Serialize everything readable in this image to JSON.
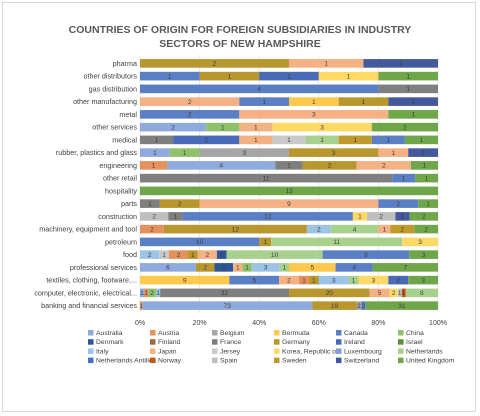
{
  "chart_data": {
    "type": "bar",
    "orientation": "horizontal",
    "stacked": "percent",
    "title_lines": [
      "COUNTRIES OF ORIGIN FOR FOREIGN SUBSIDIARIES IN INDUSTRY",
      "SECTORS OF NEW HAMPSHIRE"
    ],
    "xlim": [
      0,
      100
    ],
    "x_ticks": [
      "0%",
      "20%",
      "40%",
      "60%",
      "80%",
      "100%"
    ],
    "grid": true,
    "legend_position": "bottom",
    "countries": [
      "Australia",
      "Austria",
      "Belgium",
      "Bermuda",
      "Canada",
      "China",
      "Denmark",
      "Finland",
      "France",
      "Germany",
      "Ireland",
      "Israel",
      "Italy",
      "Japan",
      "Jersey",
      "Korea, Republic of",
      "Luxembourg",
      "Netherlands",
      "Netherlands Antilles",
      "Norway",
      "Spain",
      "Sweden",
      "Switzerland",
      "United Kingdom"
    ],
    "colors": {
      "Australia": "#8faadc",
      "Austria": "#e4915e",
      "Belgium": "#a5a5a5",
      "Bermuda": "#ffc94d",
      "Canada": "#5b7fc4",
      "China": "#8fc16a",
      "Denmark": "#2f5597",
      "Finland": "#9b6c3d",
      "France": "#7f7f7f",
      "Germany": "#b8972e",
      "Ireland": "#4a6ab5",
      "Israel": "#5c8e3f",
      "Italy": "#9dc3e6",
      "Japan": "#f4b183",
      "Jersey": "#c9c9c9",
      "Korea, Republic of": "#ffd966",
      "Luxembourg": "#7f9fd5",
      "Netherlands": "#a9d18e",
      "Netherlands Antilles": "#4472c4",
      "Norway": "#c55a11",
      "Spain": "#bfbfbf",
      "Sweden": "#c09b2c",
      "Switzerland": "#44589c",
      "United Kingdom": "#70a64a"
    },
    "rows": [
      {
        "category": "pharma",
        "segments": [
          {
            "country": "Germany",
            "value": 2
          },
          {
            "country": "Japan",
            "value": 1
          },
          {
            "country": "Switzerland",
            "value": 1
          }
        ]
      },
      {
        "category": "other distributors",
        "segments": [
          {
            "country": "Canada",
            "value": 1
          },
          {
            "country": "Germany",
            "value": 1
          },
          {
            "country": "Ireland",
            "value": 1
          },
          {
            "country": "Korea, Republic of",
            "value": 1
          },
          {
            "country": "United Kingdom",
            "value": 1
          }
        ]
      },
      {
        "category": "gas distribution",
        "segments": [
          {
            "country": "Canada",
            "value": 4
          },
          {
            "country": "France",
            "value": 1
          }
        ]
      },
      {
        "category": "other manufacturing",
        "segments": [
          {
            "country": "Japan",
            "value": 2
          },
          {
            "country": "Canada",
            "value": 1
          },
          {
            "country": "Bermuda",
            "value": 1
          },
          {
            "country": "Germany",
            "value": 1
          },
          {
            "country": "Switzerland",
            "value": 1
          }
        ]
      },
      {
        "category": "metal",
        "segments": [
          {
            "country": "Canada",
            "value": 2
          },
          {
            "country": "Japan",
            "value": 3
          },
          {
            "country": "United Kingdom",
            "value": 1
          }
        ]
      },
      {
        "category": "other services",
        "segments": [
          {
            "country": "Australia",
            "value": 2
          },
          {
            "country": "China",
            "value": 1
          },
          {
            "country": "Japan",
            "value": 1
          },
          {
            "country": "Korea, Republic of",
            "value": 3
          },
          {
            "country": "United Kingdom",
            "value": 2
          }
        ]
      },
      {
        "category": "medical",
        "segments": [
          {
            "country": "France",
            "value": 1
          },
          {
            "country": "Ireland",
            "value": 2
          },
          {
            "country": "Japan",
            "value": 1
          },
          {
            "country": "Jersey",
            "value": 1
          },
          {
            "country": "Netherlands",
            "value": 1
          },
          {
            "country": "Sweden",
            "value": 1
          },
          {
            "country": "Canada",
            "value": 1
          },
          {
            "country": "United Kingdom",
            "value": 1
          }
        ]
      },
      {
        "category": "rubber, plastics and glass",
        "segments": [
          {
            "country": "Australia",
            "value": 1
          },
          {
            "country": "China",
            "value": 1
          },
          {
            "country": "Belgium",
            "value": 3
          },
          {
            "country": "Germany",
            "value": 3
          },
          {
            "country": "Japan",
            "value": 1
          },
          {
            "country": "Switzerland",
            "value": 1
          }
        ]
      },
      {
        "category": "engineering",
        "segments": [
          {
            "country": "Austria",
            "value": 1
          },
          {
            "country": "Australia",
            "value": 4
          },
          {
            "country": "France",
            "value": 1
          },
          {
            "country": "Germany",
            "value": 2
          },
          {
            "country": "Japan",
            "value": 2
          },
          {
            "country": "United Kingdom",
            "value": 1
          }
        ]
      },
      {
        "category": "other retail",
        "segments": [
          {
            "country": "France",
            "value": 11
          },
          {
            "country": "Canada",
            "value": 1
          },
          {
            "country": "United Kingdom",
            "value": 1
          }
        ]
      },
      {
        "category": "hospitality",
        "segments": [
          {
            "country": "United Kingdom",
            "value": 13
          }
        ]
      },
      {
        "category": "parts",
        "segments": [
          {
            "country": "France",
            "value": 1
          },
          {
            "country": "Germany",
            "value": 2
          },
          {
            "country": "Japan",
            "value": 9
          },
          {
            "country": "Canada",
            "value": 2
          },
          {
            "country": "United Kingdom",
            "value": 1
          }
        ]
      },
      {
        "category": "construction",
        "segments": [
          {
            "country": "Spain",
            "value": 2
          },
          {
            "country": "France",
            "value": 1
          },
          {
            "country": "Canada",
            "value": 12
          },
          {
            "country": "Korea, Republic of",
            "value": 1
          },
          {
            "country": "Spain",
            "value": 2
          },
          {
            "country": "Switzerland",
            "value": 1
          },
          {
            "country": "United Kingdom",
            "value": 2
          }
        ]
      },
      {
        "category": "machinery, equipment and tool",
        "segments": [
          {
            "country": "Austria",
            "value": 2
          },
          {
            "country": "Germany",
            "value": 12
          },
          {
            "country": "Italy",
            "value": 2
          },
          {
            "country": "Netherlands",
            "value": 4
          },
          {
            "country": "Japan",
            "value": 1
          },
          {
            "country": "Sweden",
            "value": 2
          },
          {
            "country": "United Kingdom",
            "value": 2
          }
        ]
      },
      {
        "category": "petroleum",
        "segments": [
          {
            "country": "Canada",
            "value": 10
          },
          {
            "country": "Germany",
            "value": 1
          },
          {
            "country": "Netherlands",
            "value": 11
          },
          {
            "country": "Korea, Republic of",
            "value": 3
          }
        ]
      },
      {
        "category": "food",
        "segments": [
          {
            "country": "Italy",
            "value": 2
          },
          {
            "country": "Jersey",
            "value": 1
          },
          {
            "country": "Austria",
            "value": 2
          },
          {
            "country": "Germany",
            "value": 1
          },
          {
            "country": "Japan",
            "value": 2
          },
          {
            "country": "Denmark",
            "value": 1
          },
          {
            "country": "Netherlands",
            "value": 10
          },
          {
            "country": "Canada",
            "value": 9
          },
          {
            "country": "United Kingdom",
            "value": 3
          }
        ]
      },
      {
        "category": "professional services",
        "segments": [
          {
            "country": "Australia",
            "value": 6
          },
          {
            "country": "Germany",
            "value": 2
          },
          {
            "country": "Denmark",
            "value": 2
          },
          {
            "country": "Japan",
            "value": 1
          },
          {
            "country": "China",
            "value": 1
          },
          {
            "country": "Italy",
            "value": 3
          },
          {
            "country": "Netherlands",
            "value": 1
          },
          {
            "country": "Bermuda",
            "value": 5
          },
          {
            "country": "Canada",
            "value": 4
          },
          {
            "country": "United Kingdom",
            "value": 7
          }
        ]
      },
      {
        "category": "textiles, clothing, footware,...",
        "segments": [
          {
            "country": "Bermuda",
            "value": 9
          },
          {
            "country": "Canada",
            "value": 5
          },
          {
            "country": "Japan",
            "value": 2
          },
          {
            "country": "Austria",
            "value": 1
          },
          {
            "country": "Germany",
            "value": 1
          },
          {
            "country": "Italy",
            "value": 3
          },
          {
            "country": "Netherlands",
            "value": 1
          },
          {
            "country": "Korea, Republic of",
            "value": 3
          },
          {
            "country": "Ireland",
            "value": 2
          },
          {
            "country": "United Kingdom",
            "value": 3
          }
        ]
      },
      {
        "category": "computer, electronic, electrical...",
        "segments": [
          {
            "country": "Australia",
            "value": 1
          },
          {
            "country": "Austria",
            "value": 1
          },
          {
            "country": "China",
            "value": 2
          },
          {
            "country": "Italy",
            "value": 1
          },
          {
            "country": "France",
            "value": 32
          },
          {
            "country": "Germany",
            "value": 20
          },
          {
            "country": "Japan",
            "value": 5
          },
          {
            "country": "Korea, Republic of",
            "value": 2
          },
          {
            "country": "Jersey",
            "value": 1
          },
          {
            "country": "Norway",
            "value": 1
          },
          {
            "country": "Netherlands",
            "value": 8
          }
        ]
      },
      {
        "category": "banking and financial services",
        "segments": [
          {
            "country": "Austria",
            "value": 1
          },
          {
            "country": "Australia",
            "value": 73
          },
          {
            "country": "Germany",
            "value": 19
          },
          {
            "country": "Belgium",
            "value": 2
          },
          {
            "country": "Canada",
            "value": 2
          },
          {
            "country": "United Kingdom",
            "value": 31
          }
        ]
      }
    ]
  }
}
